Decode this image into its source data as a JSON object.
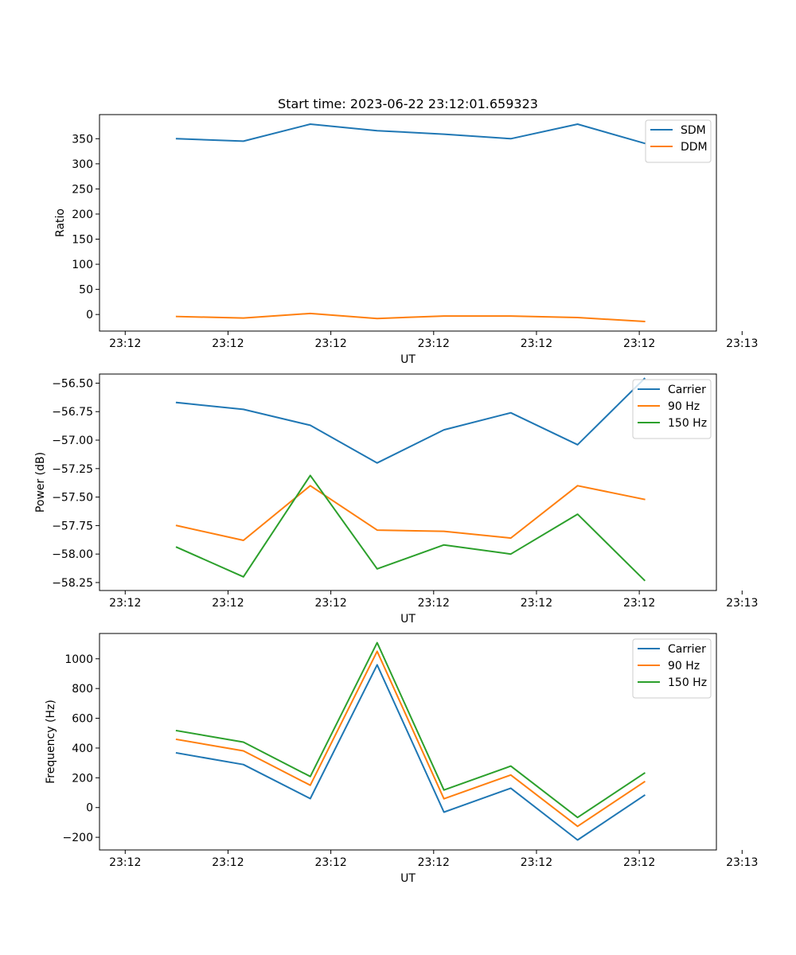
{
  "chart_data": [
    {
      "type": "line",
      "title": "Start time: 2023-06-22 23:12:01.659323",
      "xlabel": "UT",
      "ylabel": "Ratio",
      "xlim": [
        0,
        12
      ],
      "ylim": [
        -33,
        398
      ],
      "x_ticks": [
        0.5,
        2.5,
        4.5,
        6.5,
        8.5,
        10.5,
        12.5
      ],
      "x_tick_labels": [
        "23:12",
        "23:12",
        "23:12",
        "23:12",
        "23:12",
        "23:12",
        "23:13"
      ],
      "y_ticks": [
        0,
        50,
        100,
        150,
        200,
        250,
        300,
        350
      ],
      "y_tick_labels": [
        "0",
        "50",
        "100",
        "150",
        "200",
        "250",
        "300",
        "350"
      ],
      "legend": "top-right",
      "grid": false,
      "x": [
        1.5,
        2.8,
        4.1,
        5.4,
        6.7,
        8.0,
        9.3,
        10.6
      ],
      "series": [
        {
          "name": "SDM",
          "color": "#1f77b4",
          "values": [
            350,
            345,
            379,
            366,
            359,
            350,
            379,
            341
          ]
        },
        {
          "name": "DDM",
          "color": "#ff7f0e",
          "values": [
            -4,
            -7,
            2,
            -8,
            -3,
            -3,
            -6,
            -14
          ]
        }
      ]
    },
    {
      "type": "line",
      "title": "",
      "xlabel": "UT",
      "ylabel": "Power (dB)",
      "xlim": [
        0,
        12
      ],
      "ylim": [
        -58.32,
        -56.42
      ],
      "x_ticks": [
        0.5,
        2.5,
        4.5,
        6.5,
        8.5,
        10.5,
        12.5
      ],
      "x_tick_labels": [
        "23:12",
        "23:12",
        "23:12",
        "23:12",
        "23:12",
        "23:12",
        "23:13"
      ],
      "y_ticks": [
        -58.25,
        -58.0,
        -57.75,
        -57.5,
        -57.25,
        -57.0,
        -56.75,
        -56.5
      ],
      "y_tick_labels": [
        "−58.25",
        "−58.00",
        "−57.75",
        "−57.50",
        "−57.25",
        "−57.00",
        "−56.75",
        "−56.50"
      ],
      "legend": "top-right",
      "grid": false,
      "x": [
        1.5,
        2.8,
        4.1,
        5.4,
        6.7,
        8.0,
        9.3,
        10.6
      ],
      "series": [
        {
          "name": "Carrier",
          "color": "#1f77b4",
          "values": [
            -56.67,
            -56.73,
            -56.87,
            -57.2,
            -56.91,
            -56.76,
            -57.04,
            -56.46
          ]
        },
        {
          "name": "90 Hz",
          "color": "#ff7f0e",
          "values": [
            -57.75,
            -57.88,
            -57.4,
            -57.79,
            -57.8,
            -57.86,
            -57.4,
            -57.52
          ]
        },
        {
          "name": "150 Hz",
          "color": "#2ca02c",
          "values": [
            -57.94,
            -58.2,
            -57.31,
            -58.13,
            -57.92,
            -58.0,
            -57.65,
            -58.23
          ]
        }
      ]
    },
    {
      "type": "line",
      "title": "",
      "xlabel": "UT",
      "ylabel": "Frequency (Hz)",
      "xlim": [
        0,
        12
      ],
      "ylim": [
        -285,
        1170
      ],
      "x_ticks": [
        0.5,
        2.5,
        4.5,
        6.5,
        8.5,
        10.5,
        12.5
      ],
      "x_tick_labels": [
        "23:12",
        "23:12",
        "23:12",
        "23:12",
        "23:12",
        "23:12",
        "23:13"
      ],
      "y_ticks": [
        -200,
        0,
        200,
        400,
        600,
        800,
        1000
      ],
      "y_tick_labels": [
        "−200",
        "0",
        "200",
        "400",
        "600",
        "800",
        "1000"
      ],
      "legend": "top-right",
      "grid": false,
      "x": [
        1.5,
        2.8,
        4.1,
        5.4,
        6.7,
        8.0,
        9.3,
        10.6
      ],
      "series": [
        {
          "name": "Carrier",
          "color": "#1f77b4",
          "values": [
            367,
            289,
            60,
            959,
            -31,
            130,
            -218,
            82
          ]
        },
        {
          "name": "90 Hz",
          "color": "#ff7f0e",
          "values": [
            458,
            381,
            150,
            1050,
            59,
            219,
            -126,
            173
          ]
        },
        {
          "name": "150 Hz",
          "color": "#2ca02c",
          "values": [
            517,
            440,
            209,
            1108,
            118,
            279,
            -67,
            231
          ]
        }
      ]
    }
  ]
}
